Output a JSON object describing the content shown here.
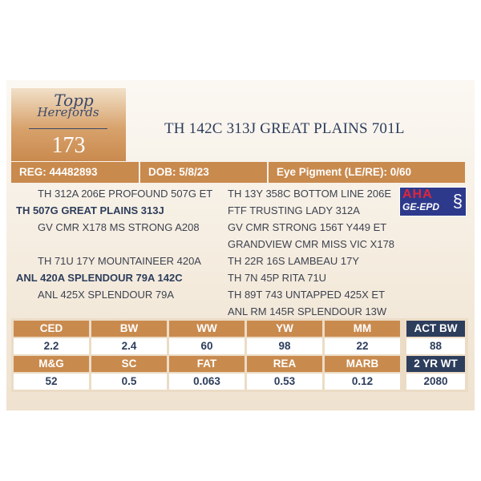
{
  "logo": {
    "line1": "Topp",
    "line2": "Herefords"
  },
  "lot_number": "173",
  "title": "TH 142C 313J GREAT PLAINS 701L",
  "info": {
    "reg": "REG: 44482893",
    "dob": "DOB: 5/8/23",
    "eye": "Eye Pigment (LE/RE): 0/60"
  },
  "pedigree": {
    "left": [
      "TH 312A 206E PROFOUND 507G ET",
      "TH 507G GREAT PLAINS 313J",
      "GV CMR X178 MS STRONG A208",
      "TH 71U 17Y MOUNTAINEER 420A",
      "ANL 420A SPLENDOUR 79A 142C",
      "ANL 425X SPLENDOUR 79A"
    ],
    "right": [
      "TH 13Y 358C BOTTOM LINE 206E",
      "FTF TRUSTING LADY 312A",
      "GV CMR STRONG 156T Y449 ET",
      "GRANDVIEW CMR MISS VIC X178",
      "TH 22R 16S LAMBEAU 17Y",
      "TH 7N 45P RITA 71U",
      "TH 89T 743 UNTAPPED 425X ET",
      "ANL RM 145R SPLENDOUR 13W"
    ]
  },
  "badge": {
    "line1": "AHA",
    "line2": "GE-EPD"
  },
  "epd": {
    "row1": [
      {
        "label": "CED",
        "value": "2.2"
      },
      {
        "label": "BW",
        "value": "2.4"
      },
      {
        "label": "WW",
        "value": "60"
      },
      {
        "label": "YW",
        "value": "98"
      },
      {
        "label": "MM",
        "value": "22"
      }
    ],
    "row2": [
      {
        "label": "M&G",
        "value": "52"
      },
      {
        "label": "SC",
        "value": "0.5"
      },
      {
        "label": "FAT",
        "value": "0.063"
      },
      {
        "label": "REA",
        "value": "0.53"
      },
      {
        "label": "MARB",
        "value": "0.12"
      }
    ]
  },
  "actual": [
    {
      "label": "ACT BW",
      "value": "88"
    },
    {
      "label": "2 YR WT",
      "value": "2080"
    }
  ],
  "colors": {
    "accent": "#c98a4e",
    "navy": "#2d3d5c"
  }
}
